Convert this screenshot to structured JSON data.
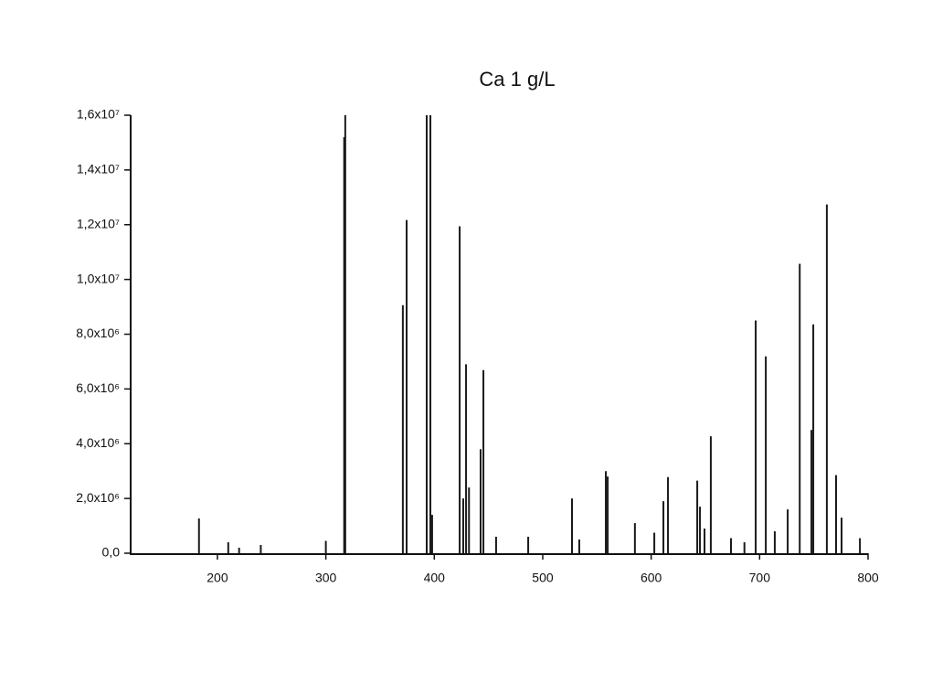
{
  "chart_data": {
    "type": "stem",
    "title": "Ca 1 g/L",
    "color": "#1a1a1a",
    "x": [
      183,
      210,
      220,
      240,
      300,
      316.9,
      317.9,
      371,
      374.5,
      393,
      396.4,
      398,
      423.4,
      426.7,
      429.3,
      432,
      442.7,
      445.3,
      457,
      486.6,
      527,
      533.7,
      558.2,
      559.9,
      585,
      602.9,
      611.3,
      615.5,
      642.5,
      645,
      649.2,
      655,
      673.6,
      686,
      696.4,
      705.7,
      714,
      725.9,
      737,
      747.8,
      749.5,
      762,
      770.5,
      775.6,
      792.5
    ],
    "values": [
      1270000,
      400000,
      200000,
      300000,
      450000,
      15200000,
      16000000,
      9060000,
      12170000,
      16000000,
      16000000,
      1400000,
      11940000,
      2000000,
      6900000,
      2400000,
      3800000,
      6690000,
      600000,
      600000,
      2000000,
      500000,
      3000000,
      2800000,
      1100000,
      750000,
      1900000,
      2780000,
      2650000,
      1700000,
      900000,
      4270000,
      550000,
      400000,
      8500000,
      7190000,
      800000,
      1600000,
      10570000,
      4500000,
      8360000,
      12740000,
      2850000,
      1300000,
      550000
    ],
    "xlim": [
      120,
      800
    ],
    "ylim": [
      0,
      16000000
    ],
    "xticks": [
      200,
      300,
      400,
      500,
      600,
      700,
      800
    ],
    "yticks": [
      {
        "value": 0,
        "label": "0,0"
      },
      {
        "value": 2000000,
        "label": "2,0x10⁶"
      },
      {
        "value": 4000000,
        "label": "4,0x10⁶"
      },
      {
        "value": 6000000,
        "label": "6,0x10⁶"
      },
      {
        "value": 8000000,
        "label": "8,0x10⁶"
      },
      {
        "value": 10000000,
        "label": "1,0x10⁷"
      },
      {
        "value": 12000000,
        "label": "1,2x10⁷"
      },
      {
        "value": 14000000,
        "label": "1,4x10⁷"
      },
      {
        "value": 16000000,
        "label": "1,6x10⁷"
      }
    ]
  }
}
